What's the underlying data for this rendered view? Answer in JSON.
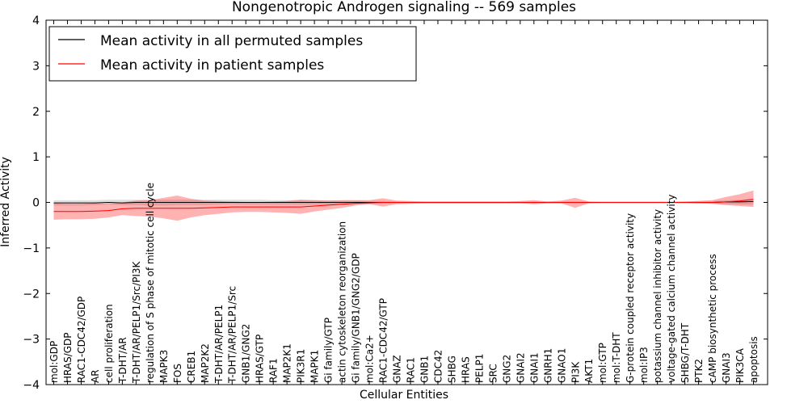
{
  "chart_data": {
    "type": "line",
    "title": "Nongenotropic Androgen signaling -- 569 samples",
    "xlabel": "Cellular Entities",
    "ylabel": "Inferred Activity",
    "ylim": [
      -4,
      4
    ],
    "yticks": [
      4,
      3,
      2,
      1,
      0,
      -1,
      -2,
      -3,
      -4
    ],
    "ytick_labels": [
      "4",
      "3",
      "2",
      "1",
      "0",
      "−1",
      "−2",
      "−3",
      "−4"
    ],
    "legend_position": "top-left",
    "categories": [
      "mol:GDP",
      "HRAS/GDP",
      "RAC1-CDC42/GDP",
      "AR",
      "cell proliferation",
      "T-DHT/AR",
      "T-DHT/AR/PELP1/Src/PI3K",
      "regulation of S phase of mitotic cell cycle",
      "MAPK3",
      "FOS",
      "CREB1",
      "MAP2K2",
      "T-DHT/AR/PELP1",
      "T-DHT/AR/PELP1/Src",
      "GNB1/GNG2",
      "HRAS/GTP",
      "RAF1",
      "MAP2K1",
      "PIK3R1",
      "MAPK1",
      "Gi family/GTP",
      "actin cytoskeleton reorganization",
      "Gi family/GNB1/GNG2/GDP",
      "mol:Ca2+",
      "RAC1-CDC42/GTP",
      "GNAZ",
      "RAC1",
      "GNB1",
      "CDC42",
      "SHBG",
      "HRAS",
      "PELP1",
      "SRC",
      "GNG2",
      "GNAI2",
      "GNAI1",
      "GNRH1",
      "GNAO1",
      "PI3K",
      "AKT1",
      "mol:GTP",
      "mol:T-DHT",
      "G-protein coupled receptor activity",
      "mol:IP3",
      "potassium channel inhibitor activity",
      "voltage-gated calcium channel activity",
      "SHBG/T-DHT",
      "PTK2",
      "cAMP biosynthetic process",
      "GNAI3",
      "PIK3CA",
      "apoptosis"
    ],
    "series": [
      {
        "name": "Mean activity in all permuted samples",
        "color": "#000000",
        "band_color": "#bbbbbb",
        "values": [
          -0.01,
          -0.01,
          -0.01,
          -0.01,
          0.0,
          -0.01,
          0.0,
          0.0,
          0.0,
          0.0,
          0.0,
          0.0,
          0.0,
          0.0,
          0.0,
          0.0,
          0.0,
          0.0,
          0.0,
          0.0,
          0.0,
          0.0,
          0.0,
          0.0,
          0.0,
          0.0,
          0.0,
          0.0,
          0.0,
          0.0,
          0.0,
          0.0,
          0.0,
          0.0,
          0.0,
          0.0,
          0.0,
          0.0,
          0.0,
          0.0,
          0.0,
          0.0,
          0.0,
          0.0,
          0.0,
          0.0,
          0.0,
          0.0,
          0.0,
          0.01,
          0.01,
          0.02
        ],
        "lower": [
          -0.07,
          -0.07,
          -0.07,
          -0.06,
          -0.05,
          -0.06,
          -0.06,
          -0.07,
          -0.07,
          -0.06,
          -0.06,
          -0.06,
          -0.05,
          -0.04,
          -0.05,
          -0.05,
          -0.05,
          -0.05,
          -0.05,
          -0.05,
          -0.05,
          -0.04,
          -0.04,
          -0.03,
          -0.03,
          -0.02,
          -0.02,
          -0.02,
          -0.02,
          -0.02,
          -0.02,
          -0.02,
          -0.02,
          -0.02,
          -0.02,
          -0.02,
          -0.02,
          -0.02,
          -0.02,
          -0.02,
          -0.02,
          -0.02,
          -0.02,
          -0.02,
          -0.02,
          -0.02,
          -0.02,
          -0.03,
          -0.03,
          -0.04,
          -0.05,
          -0.05
        ],
        "upper": [
          0.05,
          0.05,
          0.05,
          0.05,
          0.06,
          0.06,
          0.06,
          0.06,
          0.06,
          0.06,
          0.06,
          0.06,
          0.06,
          0.06,
          0.06,
          0.06,
          0.05,
          0.05,
          0.05,
          0.05,
          0.05,
          0.04,
          0.04,
          0.03,
          0.03,
          0.02,
          0.02,
          0.02,
          0.02,
          0.02,
          0.02,
          0.02,
          0.02,
          0.02,
          0.02,
          0.02,
          0.02,
          0.02,
          0.02,
          0.02,
          0.02,
          0.02,
          0.02,
          0.02,
          0.02,
          0.02,
          0.02,
          0.03,
          0.03,
          0.05,
          0.06,
          0.07
        ]
      },
      {
        "name": "Mean activity in patient samples",
        "color": "#ff0000",
        "band_color": "#ff0000",
        "values": [
          -0.2,
          -0.2,
          -0.2,
          -0.19,
          -0.18,
          -0.14,
          -0.13,
          -0.13,
          -0.13,
          -0.13,
          -0.13,
          -0.12,
          -0.11,
          -0.1,
          -0.1,
          -0.1,
          -0.1,
          -0.1,
          -0.1,
          -0.08,
          -0.06,
          -0.04,
          -0.02,
          -0.01,
          0.0,
          0.0,
          0.0,
          0.0,
          0.0,
          0.0,
          0.0,
          0.0,
          0.0,
          0.0,
          0.0,
          0.0,
          0.0,
          0.0,
          0.0,
          0.0,
          0.0,
          0.0,
          0.0,
          0.0,
          0.0,
          0.0,
          0.0,
          0.0,
          0.0,
          0.01,
          0.03,
          0.07
        ],
        "lower": [
          -0.38,
          -0.37,
          -0.37,
          -0.36,
          -0.33,
          -0.28,
          -0.3,
          -0.31,
          -0.35,
          -0.4,
          -0.33,
          -0.28,
          -0.25,
          -0.22,
          -0.21,
          -0.21,
          -0.22,
          -0.23,
          -0.25,
          -0.2,
          -0.16,
          -0.12,
          -0.07,
          -0.04,
          -0.09,
          -0.04,
          -0.03,
          -0.02,
          -0.02,
          -0.02,
          -0.02,
          -0.02,
          -0.02,
          -0.02,
          -0.02,
          -0.04,
          -0.02,
          -0.02,
          -0.12,
          -0.02,
          -0.01,
          -0.01,
          -0.01,
          -0.01,
          -0.01,
          -0.01,
          -0.01,
          -0.02,
          -0.03,
          -0.06,
          -0.08,
          -0.1
        ],
        "upper": [
          -0.02,
          -0.03,
          -0.03,
          -0.02,
          -0.03,
          0.0,
          0.04,
          0.05,
          0.1,
          0.15,
          0.08,
          0.04,
          0.03,
          0.02,
          0.01,
          0.01,
          0.02,
          0.03,
          0.06,
          0.05,
          0.04,
          0.05,
          0.05,
          0.05,
          0.09,
          0.04,
          0.03,
          0.02,
          0.02,
          0.02,
          0.02,
          0.02,
          0.02,
          0.02,
          0.03,
          0.05,
          0.02,
          0.04,
          0.1,
          0.02,
          0.01,
          0.01,
          0.01,
          0.01,
          0.01,
          0.01,
          0.02,
          0.03,
          0.05,
          0.12,
          0.18,
          0.26
        ]
      }
    ]
  }
}
